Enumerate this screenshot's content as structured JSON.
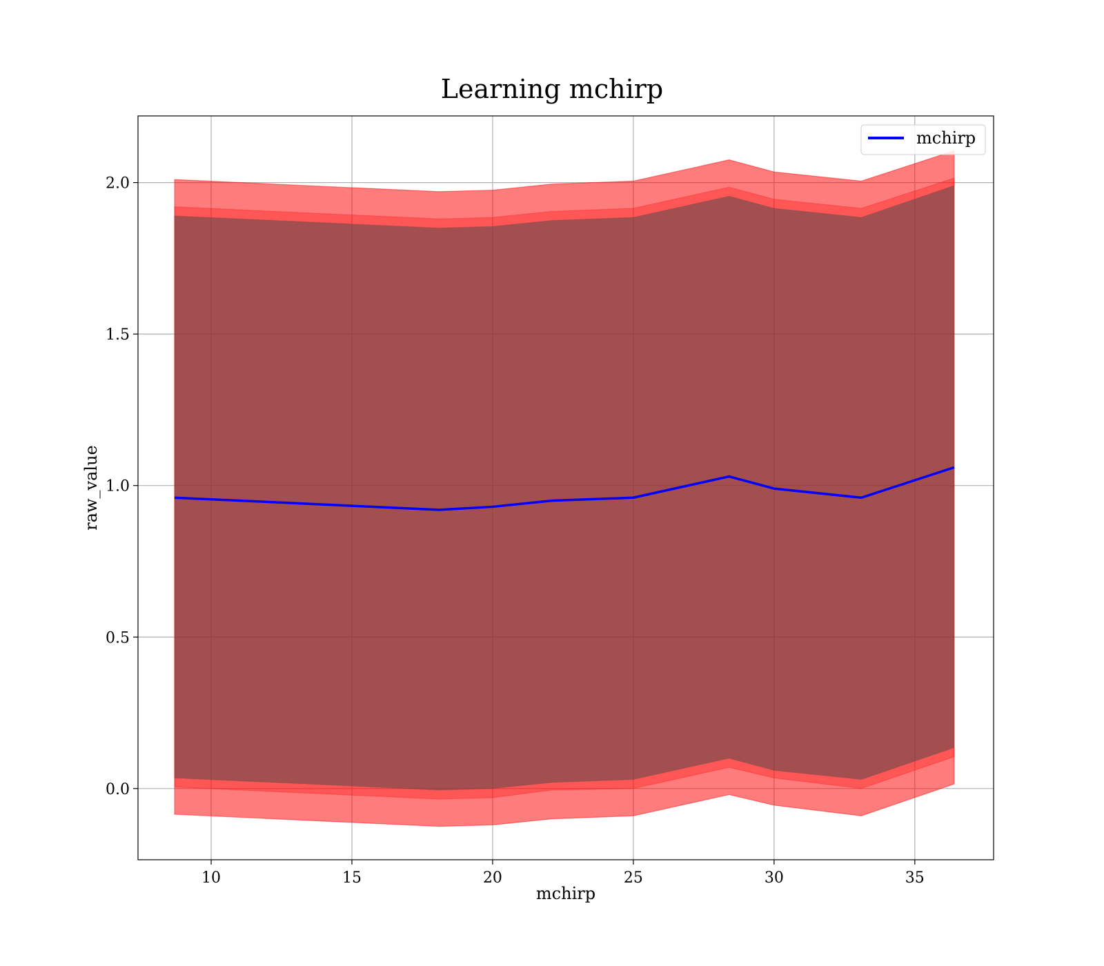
{
  "chart_data": {
    "type": "area",
    "title": "Learning mchirp",
    "xlabel": "mchirp",
    "ylabel": "raw_value",
    "xlim": [
      7.4,
      37.8
    ],
    "ylim": [
      -0.235,
      2.22
    ],
    "x_ticks": [
      10,
      15,
      20,
      25,
      30,
      35
    ],
    "y_ticks": [
      0.0,
      0.5,
      1.0,
      1.5,
      2.0
    ],
    "x_tick_labels": [
      "10",
      "15",
      "20",
      "25",
      "30",
      "35"
    ],
    "y_tick_labels": [
      "0.0",
      "0.5",
      "1.0",
      "1.5",
      "2.0"
    ],
    "grid": true,
    "legend_position": "top-right",
    "x": [
      8.7,
      18.1,
      20.0,
      22.1,
      25.0,
      28.4,
      30.0,
      33.1,
      36.4
    ],
    "series": [
      {
        "name": "mchirp",
        "color": "#0000ff",
        "values": [
          0.96,
          0.92,
          0.93,
          0.95,
          0.96,
          1.03,
          0.99,
          0.96,
          1.06
        ]
      }
    ],
    "bands": [
      {
        "color": "#ff0000",
        "opacity": 0.3,
        "upper": [
          2.01,
          1.97,
          1.975,
          1.995,
          2.005,
          2.075,
          2.035,
          2.005,
          2.105
        ],
        "lower": [
          -0.085,
          -0.125,
          -0.12,
          -0.1,
          -0.09,
          -0.02,
          -0.055,
          -0.09,
          0.015
        ]
      },
      {
        "color": "#ff0000",
        "opacity": 0.3,
        "upper": [
          1.92,
          1.88,
          1.885,
          1.905,
          1.915,
          1.985,
          1.945,
          1.915,
          2.015
        ]
      },
      {
        "color": "#ff0000",
        "opacity": 0.3,
        "lower": [
          0.005,
          -0.035,
          -0.03,
          -0.005,
          0.0,
          0.07,
          0.035,
          0.0,
          0.105
        ]
      },
      {
        "color": "#5a4a4a",
        "opacity": 0.55,
        "upper": [
          1.89,
          1.85,
          1.855,
          1.875,
          1.885,
          1.955,
          1.915,
          1.885,
          1.99
        ],
        "lower": [
          0.035,
          -0.005,
          0.0,
          0.02,
          0.03,
          0.1,
          0.06,
          0.03,
          0.135
        ]
      }
    ]
  }
}
